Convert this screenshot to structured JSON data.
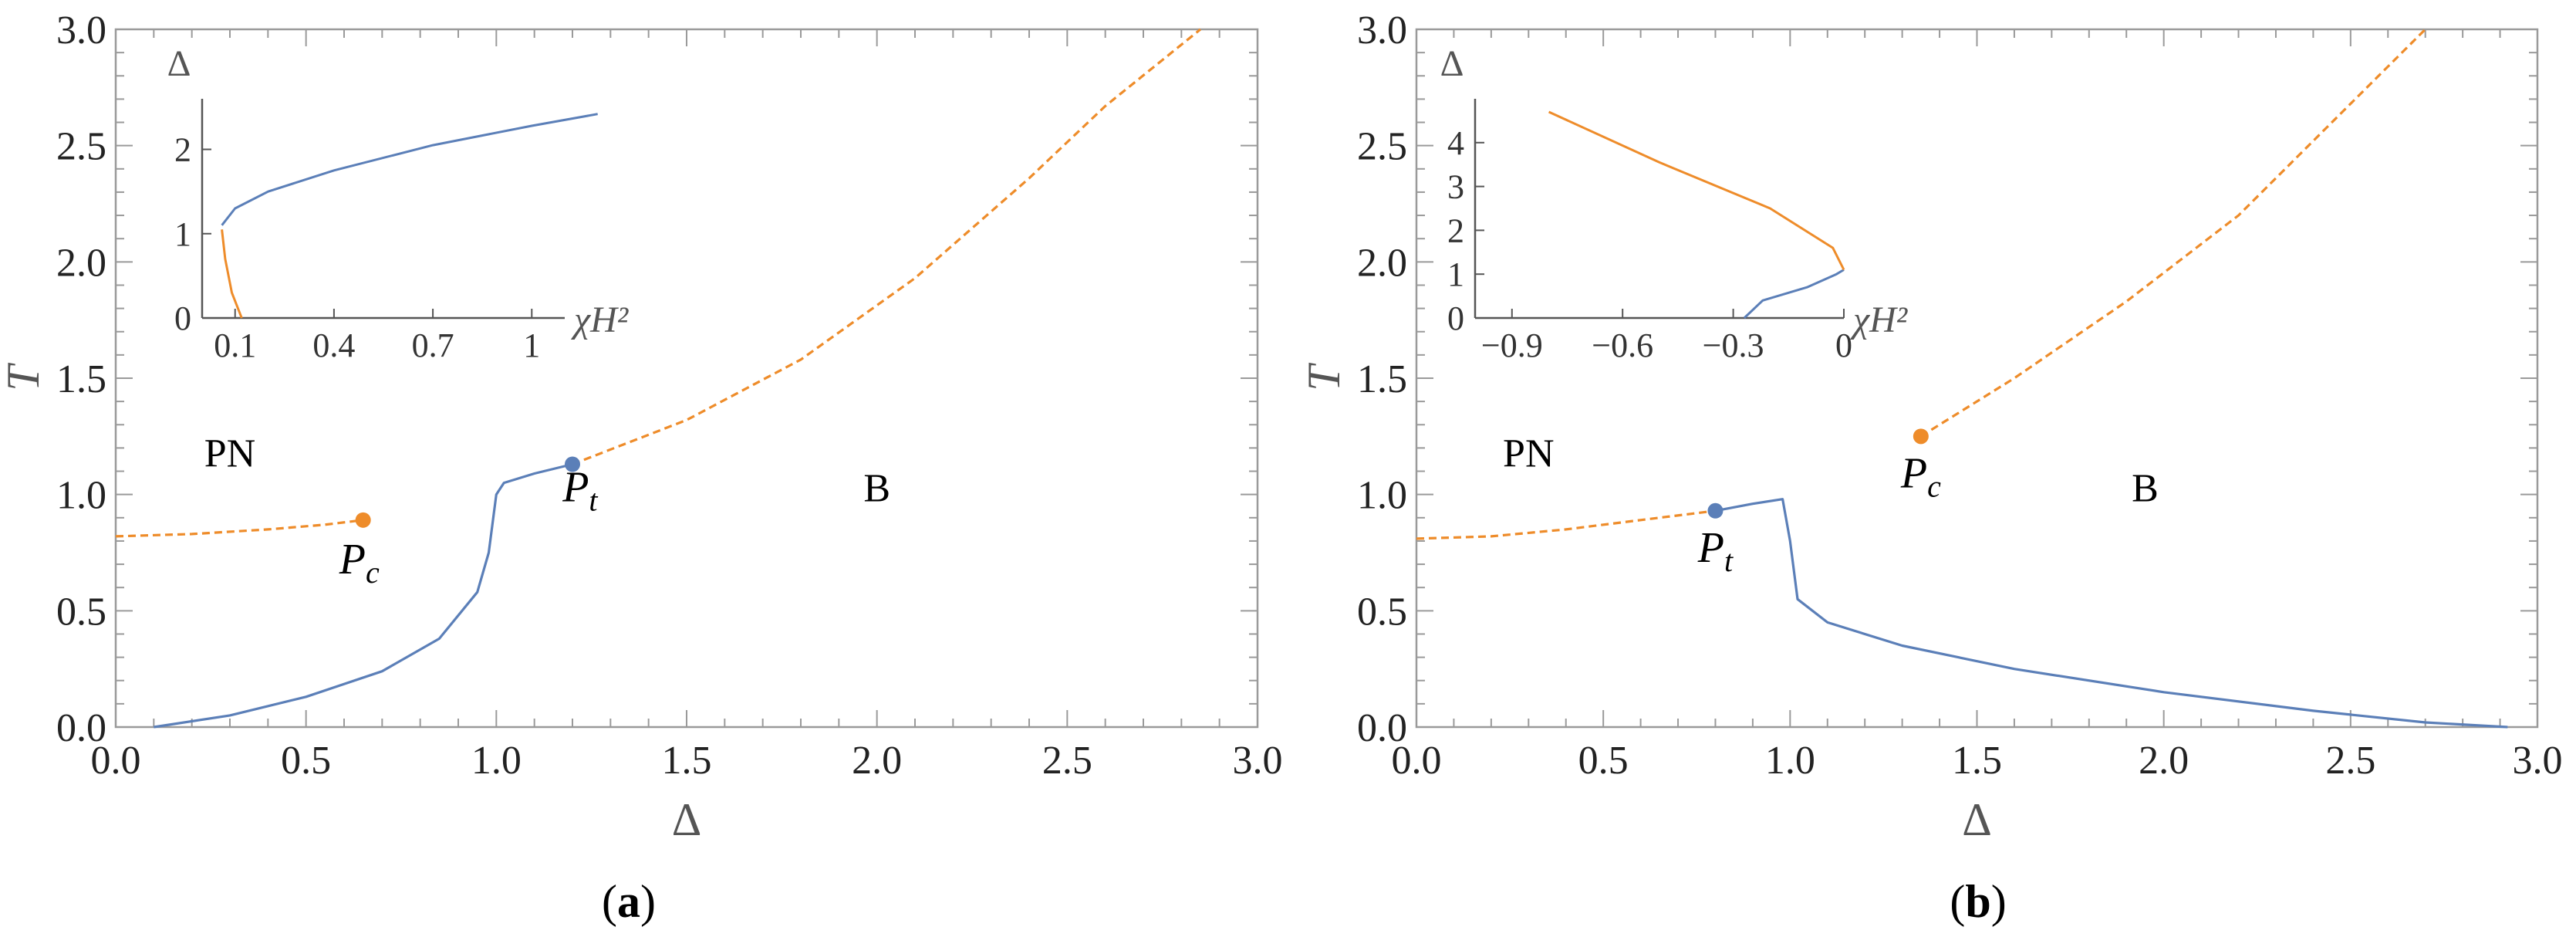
{
  "colors": {
    "blue": "#5b7fb8",
    "orange": "#ee8c2a",
    "frame": "#9a9a9a",
    "text": "#222222"
  },
  "chart_data": [
    {
      "type": "line",
      "panel_caption": "a",
      "xlabel": "Δ",
      "ylabel": "T",
      "xlim": [
        0,
        3
      ],
      "ylim": [
        0,
        3
      ],
      "xticks": [
        "0.0",
        "0.5",
        "1.0",
        "1.5",
        "2.0",
        "2.5",
        "3.0"
      ],
      "yticks": [
        "0.0",
        "0.5",
        "1.0",
        "1.5",
        "2.0",
        "2.5",
        "3.0"
      ],
      "region_labels": [
        {
          "text": "PN",
          "x": 0.3,
          "y": 1.12
        },
        {
          "text": "B",
          "x": 2.0,
          "y": 0.97
        }
      ],
      "series": [
        {
          "style": "solid",
          "color": "blue",
          "points": [
            [
              0.1,
              0
            ],
            [
              0.3,
              0.05
            ],
            [
              0.5,
              0.13
            ],
            [
              0.7,
              0.24
            ],
            [
              0.85,
              0.38
            ],
            [
              0.95,
              0.58
            ],
            [
              0.98,
              0.75
            ],
            [
              1.0,
              1.0
            ],
            [
              1.02,
              1.05
            ],
            [
              1.1,
              1.09
            ],
            [
              1.2,
              1.13
            ]
          ]
        },
        {
          "style": "dashed",
          "color": "orange",
          "points": [
            [
              0.0,
              0.82
            ],
            [
              0.2,
              0.83
            ],
            [
              0.4,
              0.85
            ],
            [
              0.55,
              0.87
            ],
            [
              0.65,
              0.89
            ]
          ]
        },
        {
          "style": "dashed",
          "color": "orange",
          "points": [
            [
              1.2,
              1.13
            ],
            [
              1.5,
              1.32
            ],
            [
              1.8,
              1.58
            ],
            [
              2.1,
              1.93
            ],
            [
              2.4,
              2.36
            ],
            [
              2.6,
              2.67
            ],
            [
              2.85,
              3.0
            ]
          ]
        }
      ],
      "special_points": [
        {
          "label": "P",
          "sub": "t",
          "x": 1.2,
          "y": 1.13,
          "color": "blue",
          "label_x": 1.22,
          "label_y": 0.97
        },
        {
          "label": "P",
          "sub": "c",
          "x": 0.65,
          "y": 0.89,
          "color": "orange",
          "label_x": 0.64,
          "label_y": 0.66
        }
      ],
      "inset": {
        "xlabel": "χH²",
        "ylabel": "Δ",
        "xlim": [
          0,
          1.1
        ],
        "ylim": [
          0,
          2.6
        ],
        "xticks": [
          {
            "v": 0.1,
            "t": "0.1"
          },
          {
            "v": 0.4,
            "t": "0.4"
          },
          {
            "v": 0.7,
            "t": "0.7"
          },
          {
            "v": 1.0,
            "t": "1"
          }
        ],
        "yticks": [
          {
            "v": 0,
            "t": "0"
          },
          {
            "v": 1,
            "t": "1"
          },
          {
            "v": 2,
            "t": "2"
          }
        ],
        "series": [
          {
            "color": "blue",
            "points": [
              [
                0.06,
                1.1
              ],
              [
                0.1,
                1.3
              ],
              [
                0.2,
                1.5
              ],
              [
                0.4,
                1.75
              ],
              [
                0.7,
                2.05
              ],
              [
                1.0,
                2.28
              ],
              [
                1.2,
                2.42
              ]
            ]
          },
          {
            "color": "orange",
            "points": [
              [
                0.06,
                1.05
              ],
              [
                0.07,
                0.7
              ],
              [
                0.09,
                0.3
              ],
              [
                0.12,
                0
              ]
            ]
          }
        ]
      }
    },
    {
      "type": "line",
      "panel_caption": "b",
      "xlabel": "Δ",
      "ylabel": "T",
      "xlim": [
        0,
        3
      ],
      "ylim": [
        0,
        3
      ],
      "xticks": [
        "0.0",
        "0.5",
        "1.0",
        "1.5",
        "2.0",
        "2.5",
        "3.0"
      ],
      "yticks": [
        "0.0",
        "0.5",
        "1.0",
        "1.5",
        "2.0",
        "2.5",
        "3.0"
      ],
      "region_labels": [
        {
          "text": "PN",
          "x": 0.3,
          "y": 1.12
        },
        {
          "text": "B",
          "x": 1.95,
          "y": 0.97
        }
      ],
      "series": [
        {
          "style": "solid",
          "color": "blue",
          "points": [
            [
              0.8,
              0.93
            ],
            [
              0.9,
              0.96
            ],
            [
              0.98,
              0.98
            ],
            [
              1.0,
              0.8
            ],
            [
              1.02,
              0.55
            ],
            [
              1.1,
              0.45
            ],
            [
              1.3,
              0.35
            ],
            [
              1.6,
              0.25
            ],
            [
              2.0,
              0.15
            ],
            [
              2.4,
              0.07
            ],
            [
              2.7,
              0.02
            ],
            [
              2.92,
              0
            ]
          ]
        },
        {
          "style": "dashed",
          "color": "orange",
          "points": [
            [
              0.0,
              0.81
            ],
            [
              0.2,
              0.82
            ],
            [
              0.4,
              0.85
            ],
            [
              0.6,
              0.89
            ],
            [
              0.8,
              0.93
            ]
          ]
        },
        {
          "style": "dashed",
          "color": "orange",
          "points": [
            [
              1.35,
              1.25
            ],
            [
              1.6,
              1.5
            ],
            [
              1.9,
              1.83
            ],
            [
              2.2,
              2.2
            ],
            [
              2.45,
              2.6
            ],
            [
              2.7,
              3.0
            ]
          ]
        }
      ],
      "special_points": [
        {
          "label": "P",
          "sub": "t",
          "x": 0.8,
          "y": 0.93,
          "color": "blue",
          "label_x": 0.8,
          "label_y": 0.71
        },
        {
          "label": "P",
          "sub": "c",
          "x": 1.35,
          "y": 1.25,
          "color": "orange",
          "label_x": 1.35,
          "label_y": 1.03
        }
      ],
      "inset": {
        "xlabel": "χH²",
        "ylabel": "Δ",
        "xlim": [
          -1.0,
          0
        ],
        "ylim": [
          0,
          5.0
        ],
        "xticks": [
          {
            "v": -0.9,
            "t": "−0.9"
          },
          {
            "v": -0.6,
            "t": "−0.6"
          },
          {
            "v": -0.3,
            "t": "−0.3"
          },
          {
            "v": 0,
            "t": "0"
          }
        ],
        "yticks": [
          {
            "v": 0,
            "t": "0"
          },
          {
            "v": 1,
            "t": "1"
          },
          {
            "v": 2,
            "t": "2"
          },
          {
            "v": 3,
            "t": "3"
          },
          {
            "v": 4,
            "t": "4"
          }
        ],
        "series": [
          {
            "color": "blue",
            "points": [
              [
                -0.27,
                0
              ],
              [
                -0.22,
                0.4
              ],
              [
                -0.1,
                0.7
              ],
              [
                -0.02,
                1.0
              ],
              [
                0,
                1.1
              ]
            ]
          },
          {
            "color": "orange",
            "points": [
              [
                0,
                1.1
              ],
              [
                -0.03,
                1.6
              ],
              [
                -0.2,
                2.5
              ],
              [
                -0.5,
                3.55
              ],
              [
                -0.8,
                4.7
              ]
            ]
          }
        ]
      }
    }
  ]
}
